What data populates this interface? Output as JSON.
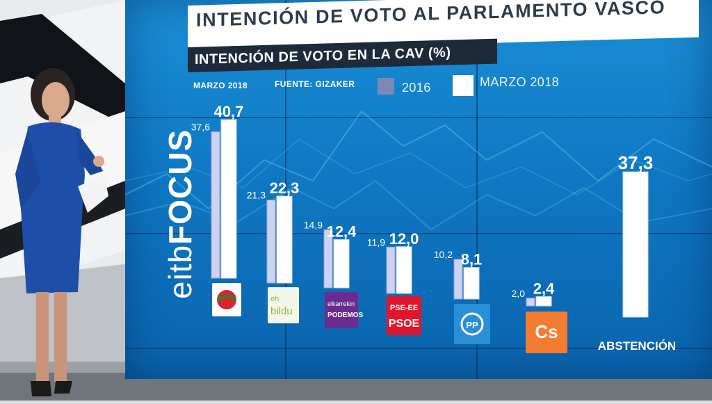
{
  "header": {
    "title": "INTENCIÓN DE VOTO AL PARLAMENTO VASCO",
    "subtitle": "INTENCIÓN DE VOTO EN LA CAV (%)",
    "date": "MARZO 2018",
    "source": "FUENTE: GIZAKER"
  },
  "logo": {
    "prefix": "eitb",
    "suffix": "FOCUS"
  },
  "colors": {
    "wall": "#1582cc",
    "bar_2016": "#c9cff0",
    "bar_2018": "#ffffff",
    "title_bg": "#ffffff",
    "subtitle_bg": "#1c2a3a"
  },
  "chart_data": {
    "type": "bar",
    "categories": [
      "EAJ-PNV",
      "EH Bildu",
      "Elkarrekin Podemos",
      "PSE-EE PSOE",
      "PP",
      "Cs",
      "ABSTENCIÓN"
    ],
    "series": [
      {
        "name": "2016",
        "values": [
          37.6,
          21.3,
          14.9,
          11.9,
          10.2,
          2.0,
          null
        ],
        "labels": [
          "37,6",
          "21,3",
          "14,9",
          "11,9",
          "10,2",
          "2,0",
          ""
        ]
      },
      {
        "name": "MARZO 2018",
        "values": [
          40.7,
          22.3,
          12.4,
          12.0,
          8.1,
          2.4,
          37.3
        ],
        "labels": [
          "40,7",
          "22,3",
          "12,4",
          "12,0",
          "8,1",
          "2,4",
          "37,3"
        ]
      }
    ],
    "category_labels": {
      "ebildu": "eh bildu",
      "podemos_top": "elkarrekin",
      "podemos_bottom": "PODEMOS",
      "pse_top": "PSE-EE",
      "pse_bottom": "PSOE",
      "pp": "PP",
      "cs": "Cs",
      "abstention": "ABSTENCIÓN"
    },
    "title": "INTENCIÓN DE VOTO EN LA CAV (%)"
  }
}
